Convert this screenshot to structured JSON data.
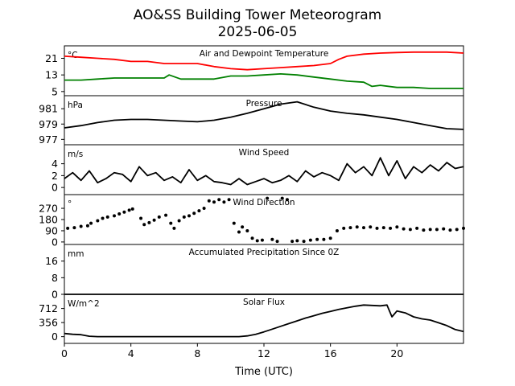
{
  "figure": {
    "title_line1": "AO&SS Building Tower Meteorogram",
    "title_line2": "2025-06-05",
    "xlabel": "Time (UTC)",
    "x_tick_labels": [
      "0",
      "4",
      "8",
      "12",
      "16",
      "20"
    ]
  },
  "chart_data": [
    {
      "type": "line",
      "title": "Air and Dewpoint Temperature",
      "unit_label": "°C",
      "ylim": [
        3,
        27
      ],
      "y_ticks": [
        5,
        13,
        21
      ],
      "series": [
        {
          "key": "air",
          "color": "#ff0000",
          "x": [
            0,
            1,
            2,
            3,
            4,
            5,
            6,
            7,
            8,
            9,
            10,
            11,
            12,
            13,
            14,
            15,
            16,
            16.5,
            17,
            18,
            19,
            20,
            21,
            22,
            23,
            24
          ],
          "y": [
            22,
            21.5,
            21,
            20.5,
            19.5,
            19.5,
            18.5,
            18.5,
            18.5,
            17,
            16,
            15.5,
            16,
            16.5,
            17,
            17.5,
            18.5,
            20.5,
            22,
            23,
            23.5,
            23.8,
            24,
            24,
            24,
            23.5
          ]
        },
        {
          "key": "dewpoint",
          "color": "#008000",
          "x": [
            0,
            1,
            2,
            3,
            4,
            5,
            6,
            6.3,
            7,
            8,
            9,
            10,
            11,
            12,
            13,
            14,
            15,
            16,
            17,
            18,
            18.5,
            19,
            20,
            21,
            22,
            23,
            24
          ],
          "y": [
            10.5,
            10.5,
            11,
            11.5,
            11.5,
            11.5,
            11.5,
            13,
            11,
            11,
            11,
            12.5,
            12.5,
            13,
            13.5,
            13,
            12,
            11,
            10,
            9.5,
            7.5,
            8,
            7,
            7,
            6.5,
            6.5,
            6.5
          ]
        }
      ]
    },
    {
      "type": "line",
      "title": "Pressure",
      "unit_label": "hPa",
      "ylim": [
        976.3,
        982.7
      ],
      "y_ticks": [
        977,
        979,
        981
      ],
      "series": [
        {
          "key": "pressure",
          "color": "#000000",
          "x": [
            0,
            1,
            2,
            3,
            4,
            5,
            6,
            7,
            8,
            9,
            10,
            11,
            12,
            13,
            14,
            15,
            16,
            17,
            18,
            19,
            20,
            21,
            22,
            23,
            24
          ],
          "y": [
            978.5,
            978.8,
            979.2,
            979.5,
            979.6,
            979.6,
            979.5,
            979.4,
            979.3,
            979.5,
            979.9,
            980.4,
            981.0,
            981.6,
            981.9,
            981.2,
            980.7,
            980.4,
            980.2,
            979.9,
            979.6,
            979.2,
            978.8,
            978.4,
            978.3
          ]
        }
      ]
    },
    {
      "type": "line",
      "title": "Wind Speed",
      "unit_label": "m/s",
      "ylim": [
        -1.2,
        7.2
      ],
      "y_ticks": [
        0,
        2,
        4
      ],
      "series": [
        {
          "key": "wind_speed",
          "color": "#000000",
          "x": [
            0,
            0.5,
            1,
            1.5,
            2,
            2.5,
            3,
            3.5,
            4,
            4.5,
            5,
            5.5,
            6,
            6.5,
            7,
            7.5,
            8,
            8.5,
            9,
            9.5,
            10,
            10.5,
            11,
            11.5,
            12,
            12.5,
            13,
            13.5,
            14,
            14.5,
            15,
            15.5,
            16,
            16.5,
            17,
            17.5,
            18,
            18.5,
            19,
            19.5,
            20,
            20.5,
            21,
            21.5,
            22,
            22.5,
            23,
            23.5,
            24
          ],
          "y": [
            1.5,
            2.5,
            1.2,
            2.8,
            0.8,
            1.5,
            2.5,
            2.2,
            1.0,
            3.5,
            2.0,
            2.5,
            1.2,
            1.8,
            0.8,
            3.0,
            1.2,
            2.0,
            1.0,
            0.8,
            0.5,
            1.5,
            0.5,
            1.0,
            1.5,
            0.8,
            1.2,
            2.0,
            1.0,
            2.8,
            1.8,
            2.5,
            2.0,
            1.2,
            4.0,
            2.5,
            3.5,
            2.0,
            5.0,
            2.0,
            4.5,
            1.5,
            3.5,
            2.5,
            3.8,
            2.8,
            4.2,
            3.2,
            3.5
          ]
        }
      ]
    },
    {
      "type": "scatter",
      "title": "Wind Direction",
      "unit_label": "°",
      "ylim": [
        -20,
        380
      ],
      "y_ticks": [
        0,
        90,
        180,
        270
      ],
      "series": [
        {
          "key": "wind_direction",
          "color": "#000000",
          "x": [
            0.2,
            0.6,
            1.0,
            1.4,
            1.6,
            2.0,
            2.3,
            2.6,
            3.0,
            3.3,
            3.6,
            3.9,
            4.1,
            4.6,
            4.8,
            5.1,
            5.4,
            5.7,
            6.1,
            6.4,
            6.6,
            6.9,
            7.2,
            7.5,
            7.8,
            8.1,
            8.4,
            8.7,
            9.0,
            9.3,
            9.6,
            9.9,
            10.2,
            10.5,
            10.7,
            11.0,
            11.3,
            11.6,
            11.9,
            12.2,
            12.5,
            12.8,
            13.1,
            13.4,
            13.7,
            14.0,
            14.4,
            14.8,
            15.2,
            15.6,
            16.0,
            16.4,
            16.8,
            17.2,
            17.6,
            18.0,
            18.4,
            18.8,
            19.2,
            19.6,
            20.0,
            20.4,
            20.8,
            21.2,
            21.6,
            22.0,
            22.4,
            22.8,
            23.2,
            23.6,
            24.0
          ],
          "y": [
            110,
            115,
            125,
            130,
            150,
            170,
            190,
            200,
            210,
            225,
            240,
            255,
            265,
            190,
            140,
            155,
            175,
            200,
            215,
            150,
            110,
            170,
            200,
            210,
            230,
            250,
            270,
            330,
            320,
            340,
            320,
            340,
            150,
            80,
            120,
            90,
            30,
            10,
            15,
            350,
            20,
            5,
            350,
            340,
            5,
            10,
            5,
            15,
            20,
            20,
            30,
            90,
            110,
            115,
            120,
            115,
            120,
            110,
            115,
            110,
            120,
            105,
            100,
            110,
            95,
            100,
            100,
            105,
            95,
            100,
            110
          ]
        }
      ]
    },
    {
      "type": "line",
      "title": "Accumulated Precipitation Since 0Z",
      "unit_label": "mm",
      "ylim": [
        0,
        24
      ],
      "y_ticks": [
        0,
        8,
        16
      ],
      "series": [
        {
          "key": "precip",
          "color": "#000000",
          "x": [
            0,
            24
          ],
          "y": [
            0,
            0
          ]
        }
      ]
    },
    {
      "type": "line",
      "title": "Solar Flux",
      "unit_label": "W/m^2",
      "ylim": [
        -170,
        1070
      ],
      "y_ticks": [
        0,
        356,
        712
      ],
      "series": [
        {
          "key": "solar",
          "color": "#000000",
          "x": [
            0,
            0.5,
            1,
            1.5,
            2,
            3,
            4,
            5,
            6,
            7,
            8,
            9,
            10,
            10.5,
            11,
            11.5,
            12,
            12.5,
            13,
            13.5,
            14,
            14.5,
            15,
            15.5,
            16,
            16.5,
            17,
            17.5,
            18,
            18.5,
            19,
            19.4,
            19.7,
            20,
            20.5,
            21,
            21.5,
            22,
            22.5,
            23,
            23.5,
            24
          ],
          "y": [
            80,
            60,
            50,
            10,
            0,
            0,
            0,
            0,
            0,
            0,
            0,
            0,
            0,
            0,
            20,
            60,
            120,
            190,
            260,
            330,
            400,
            470,
            530,
            590,
            640,
            690,
            730,
            770,
            800,
            790,
            780,
            800,
            500,
            650,
            600,
            500,
            450,
            420,
            350,
            280,
            180,
            130
          ]
        }
      ]
    }
  ]
}
